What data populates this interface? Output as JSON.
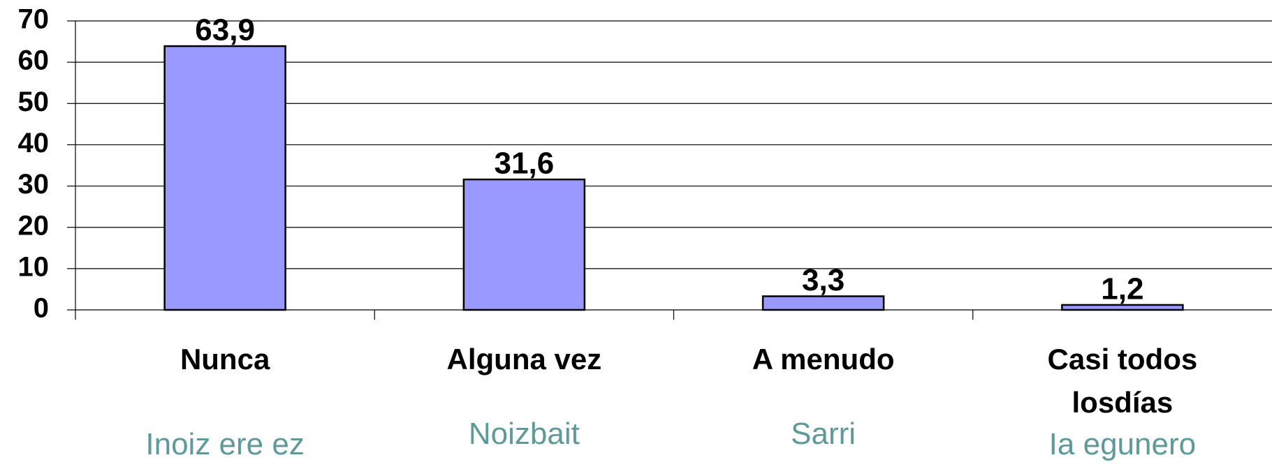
{
  "chart_data": {
    "type": "bar",
    "categories": [
      "Nunca",
      "Alguna vez",
      "A menudo",
      "Casi todos\nlosdías"
    ],
    "secondary_labels": [
      "Inoiz ere ez",
      "Noizbait",
      "Sarri",
      "Ia egunero"
    ],
    "values": [
      63.9,
      31.6,
      3.3,
      1.2
    ],
    "value_labels": [
      "63,9",
      "31,6",
      "3,3",
      "1,2"
    ],
    "color": "#9999ff",
    "ylim": [
      0,
      70
    ],
    "yticks": [
      0,
      10,
      20,
      30,
      40,
      50,
      60,
      70
    ],
    "grid": true
  }
}
